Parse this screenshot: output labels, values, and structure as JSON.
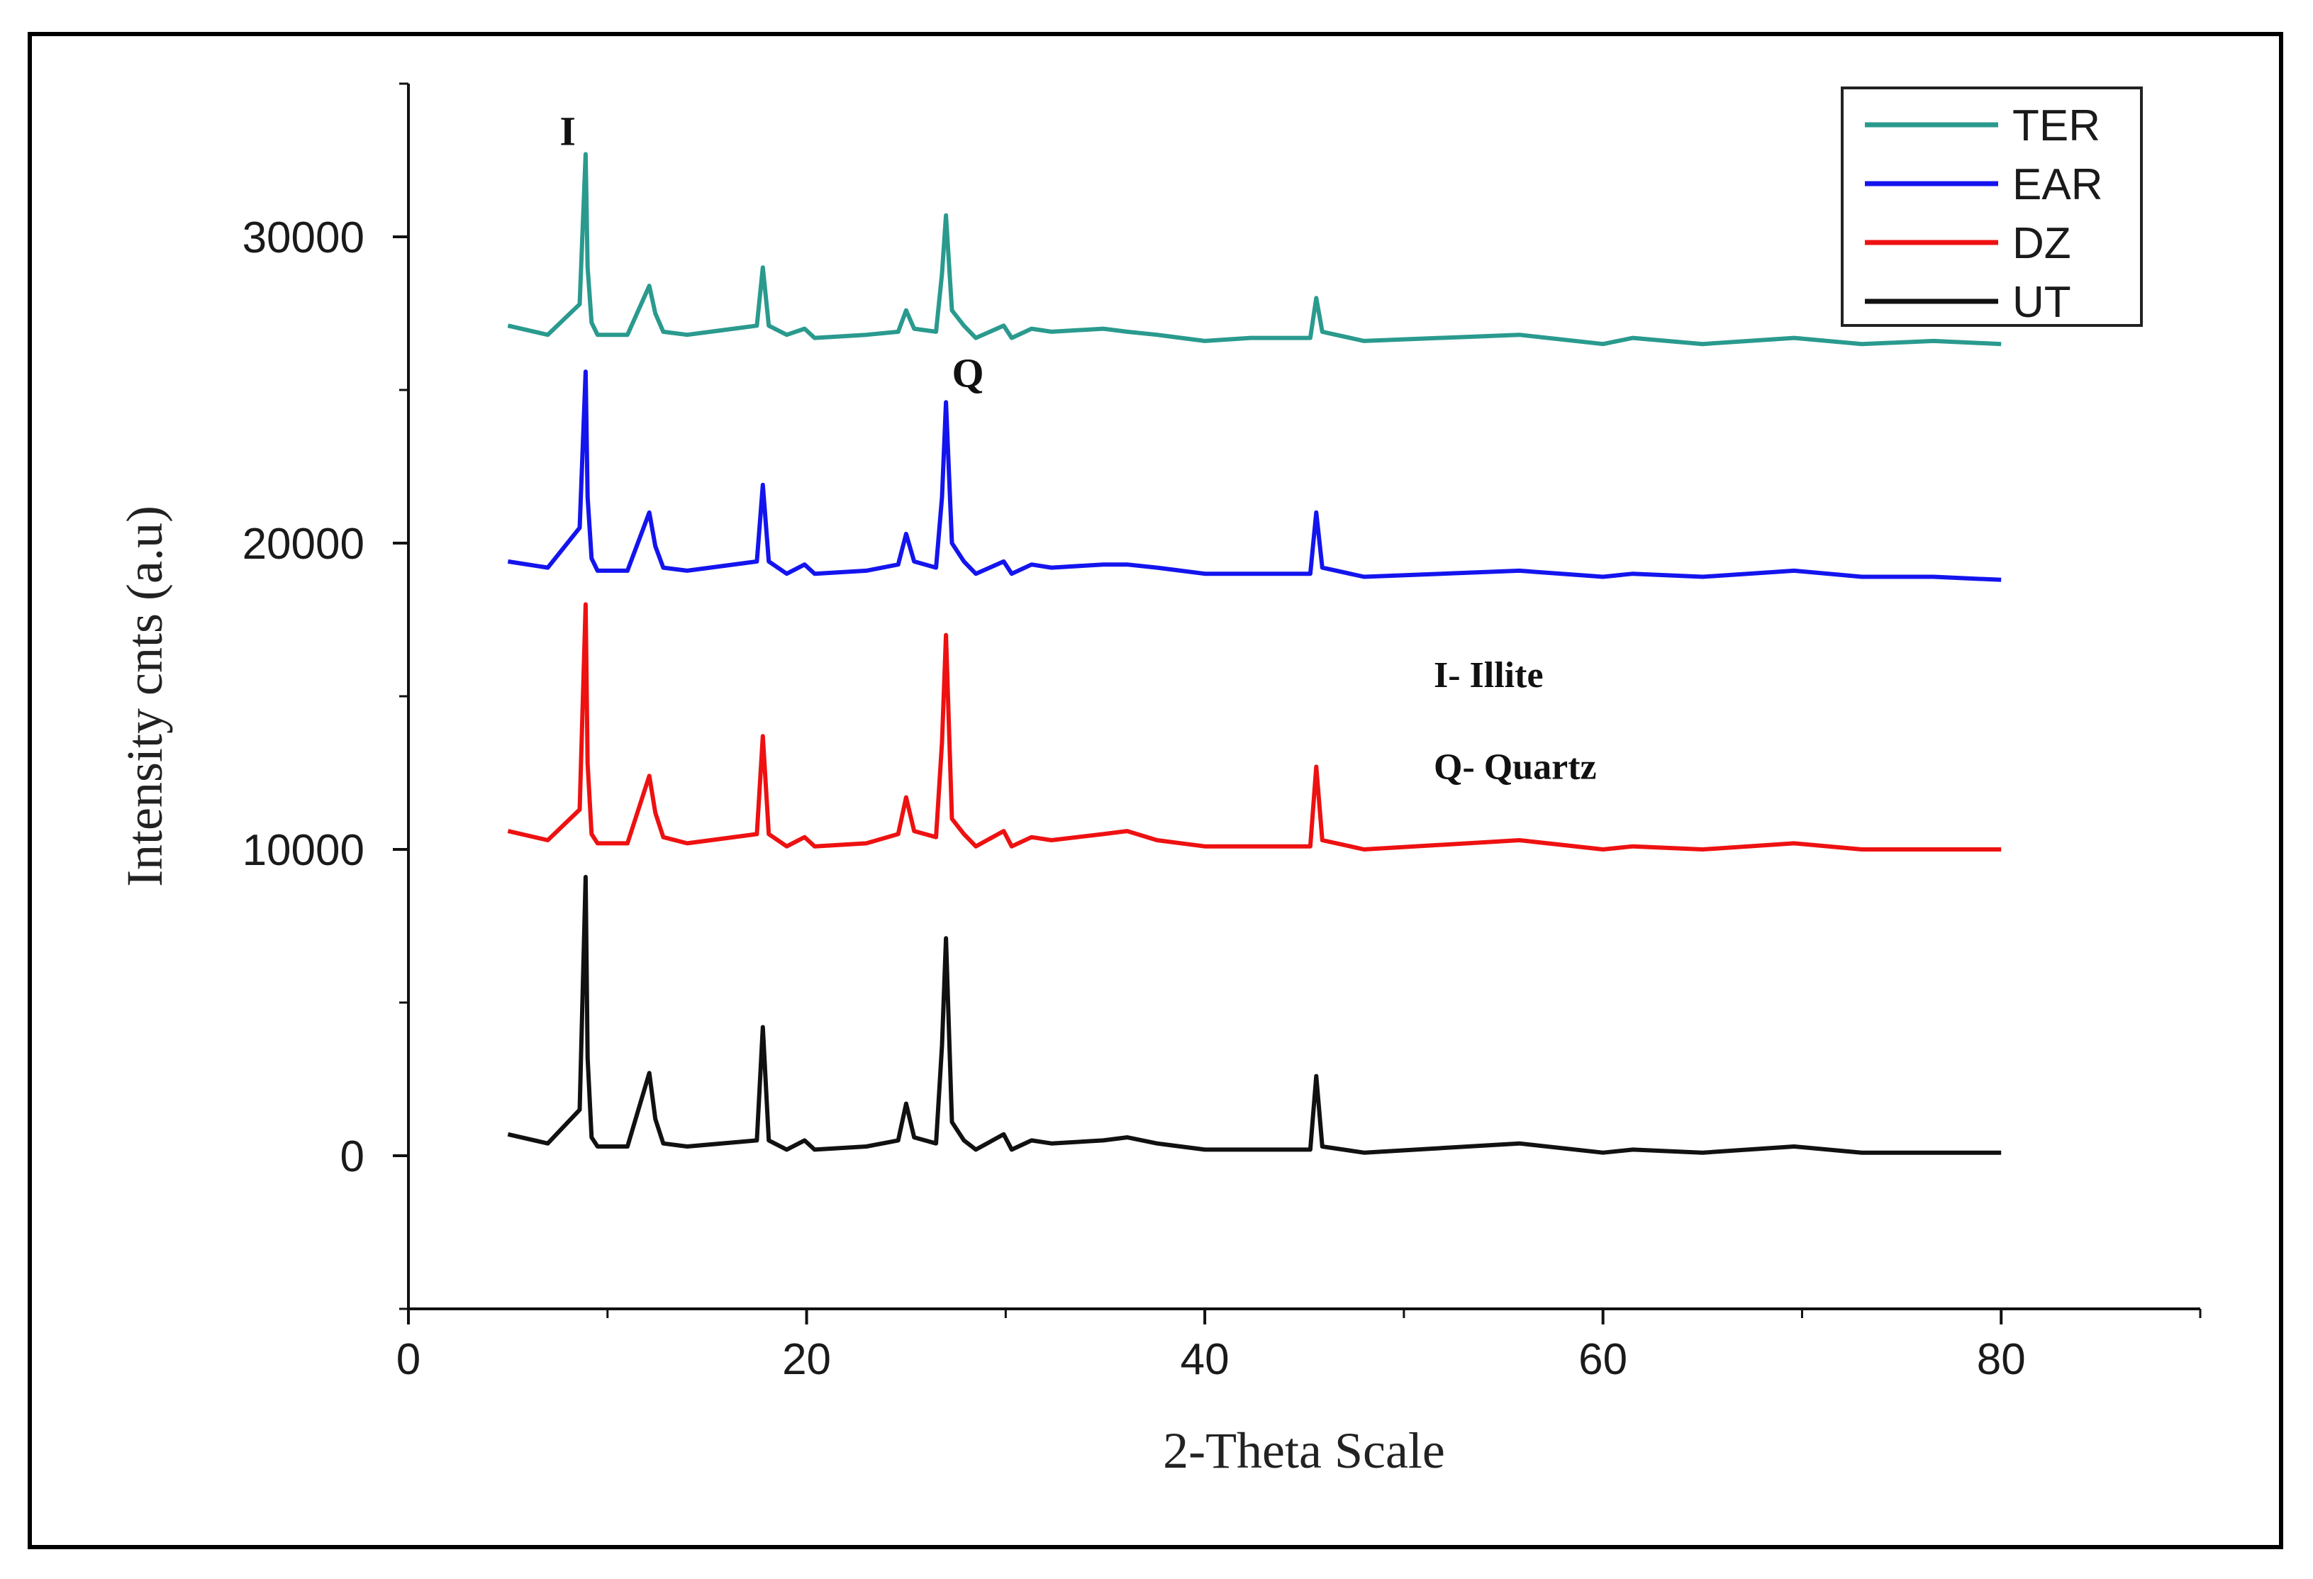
{
  "chart_data": {
    "type": "line",
    "title": "",
    "xlabel": "2-Theta Scale",
    "ylabel": "Intensity cnts (a.u)",
    "xlim": [
      0,
      90
    ],
    "ylim": [
      -5000,
      35000
    ],
    "x_ticks": [
      0,
      20,
      40,
      60,
      80
    ],
    "x_tick_labels": [
      "0",
      "20",
      "40",
      "60",
      "80"
    ],
    "y_ticks": [
      0,
      10000,
      20000,
      30000
    ],
    "y_tick_labels": [
      "0",
      "10000",
      "20000",
      "30000"
    ],
    "grid": false,
    "legend_position": "top-right",
    "series": [
      {
        "name": "TER",
        "color": "#2a9a8e",
        "x": [
          5,
          7,
          8.6,
          8.9,
          9.0,
          9.2,
          9.5,
          11,
          12.1,
          12.4,
          12.8,
          14,
          17.5,
          17.8,
          18.1,
          19,
          19.9,
          20.4,
          23,
          24.6,
          25.0,
          25.4,
          26.5,
          26.8,
          27.0,
          27.3,
          27.9,
          28.5,
          29.9,
          30.3,
          31.3,
          32.3,
          34.9,
          36.1,
          37.6,
          40,
          42.3,
          45.3,
          45.6,
          45.9,
          48,
          55.8,
          60,
          61.5,
          65,
          69.6,
          73,
          76.6,
          80
        ],
        "y": [
          27100,
          26800,
          27800,
          32700,
          29000,
          27200,
          26800,
          26800,
          28400,
          27500,
          26900,
          26800,
          27100,
          29000,
          27100,
          26800,
          27000,
          26700,
          26800,
          26900,
          27600,
          27000,
          26900,
          28800,
          30700,
          27600,
          27100,
          26700,
          27100,
          26700,
          27000,
          26900,
          27000,
          26900,
          26800,
          26600,
          26700,
          26700,
          28000,
          26900,
          26600,
          26800,
          26500,
          26700,
          26500,
          26700,
          26500,
          26600,
          26500
        ]
      },
      {
        "name": "EAR",
        "color": "#1414ee",
        "x": [
          5,
          7,
          8.6,
          8.9,
          9.0,
          9.2,
          9.5,
          11,
          12.1,
          12.4,
          12.8,
          14,
          17.5,
          17.8,
          18.1,
          19,
          19.9,
          20.4,
          23,
          24.6,
          25.0,
          25.4,
          26.5,
          26.8,
          27.0,
          27.3,
          27.9,
          28.5,
          29.9,
          30.3,
          31.3,
          32.3,
          34.9,
          36.1,
          37.6,
          40,
          42.3,
          45.3,
          45.6,
          45.9,
          48,
          55.8,
          60,
          61.5,
          65,
          69.6,
          73,
          76.6,
          80
        ],
        "y": [
          19400,
          19200,
          20500,
          25600,
          21500,
          19500,
          19100,
          19100,
          21000,
          19900,
          19200,
          19100,
          19400,
          21900,
          19400,
          19000,
          19300,
          19000,
          19100,
          19300,
          20300,
          19400,
          19200,
          21500,
          24600,
          20000,
          19400,
          19000,
          19400,
          19000,
          19300,
          19200,
          19300,
          19300,
          19200,
          19000,
          19000,
          19000,
          21000,
          19200,
          18900,
          19100,
          18900,
          19000,
          18900,
          19100,
          18900,
          18900,
          18800
        ]
      },
      {
        "name": "DZ",
        "color": "#ee1111",
        "x": [
          5,
          7,
          8.6,
          8.9,
          9.0,
          9.2,
          9.5,
          11,
          12.1,
          12.4,
          12.8,
          14,
          17.5,
          17.8,
          18.1,
          19,
          19.9,
          20.4,
          23,
          24.6,
          25.0,
          25.4,
          26.5,
          26.8,
          27.0,
          27.3,
          27.9,
          28.5,
          29.9,
          30.3,
          31.3,
          32.3,
          34.9,
          36.1,
          37.6,
          40,
          42.3,
          45.3,
          45.6,
          45.9,
          48,
          55.8,
          60,
          61.5,
          65,
          69.6,
          73,
          76.6,
          80
        ],
        "y": [
          10600,
          10300,
          11300,
          18000,
          12800,
          10500,
          10200,
          10200,
          12400,
          11200,
          10400,
          10200,
          10500,
          13700,
          10500,
          10100,
          10400,
          10100,
          10200,
          10500,
          11700,
          10600,
          10400,
          13500,
          17000,
          11000,
          10500,
          10100,
          10600,
          10100,
          10400,
          10300,
          10500,
          10600,
          10300,
          10100,
          10100,
          10100,
          12700,
          10300,
          10000,
          10300,
          10000,
          10100,
          10000,
          10200,
          10000,
          10000,
          10000
        ]
      },
      {
        "name": "UT",
        "color": "#111111",
        "x": [
          5,
          7,
          8.6,
          8.9,
          9.0,
          9.2,
          9.5,
          11,
          12.1,
          12.4,
          12.8,
          14,
          17.5,
          17.8,
          18.1,
          19,
          19.9,
          20.4,
          23,
          24.6,
          25.0,
          25.4,
          26.5,
          26.8,
          27.0,
          27.3,
          27.9,
          28.5,
          29.9,
          30.3,
          31.3,
          32.3,
          34.9,
          36.1,
          37.6,
          40,
          42.3,
          45.3,
          45.6,
          45.9,
          48,
          55.8,
          60,
          61.5,
          65,
          69.6,
          73,
          76.6,
          80
        ],
        "y": [
          700,
          400,
          1500,
          9100,
          3200,
          600,
          300,
          300,
          2700,
          1200,
          400,
          300,
          500,
          4200,
          500,
          200,
          500,
          200,
          300,
          500,
          1700,
          600,
          400,
          3600,
          7100,
          1100,
          500,
          200,
          700,
          200,
          500,
          400,
          500,
          600,
          400,
          200,
          200,
          200,
          2600,
          300,
          100,
          400,
          100,
          200,
          100,
          300,
          100,
          100,
          100
        ]
      }
    ],
    "annotations": [
      {
        "text": "I",
        "x": 7.6,
        "y": 33000,
        "size": 58
      },
      {
        "text": "Q",
        "x": 27.3,
        "y": 25100,
        "size": 58
      },
      {
        "text": "I- Illite",
        "x": 51.5,
        "y": 15300,
        "size": 52
      },
      {
        "text": "Q- Quartz",
        "x": 51.5,
        "y": 12300,
        "size": 52
      }
    ]
  }
}
